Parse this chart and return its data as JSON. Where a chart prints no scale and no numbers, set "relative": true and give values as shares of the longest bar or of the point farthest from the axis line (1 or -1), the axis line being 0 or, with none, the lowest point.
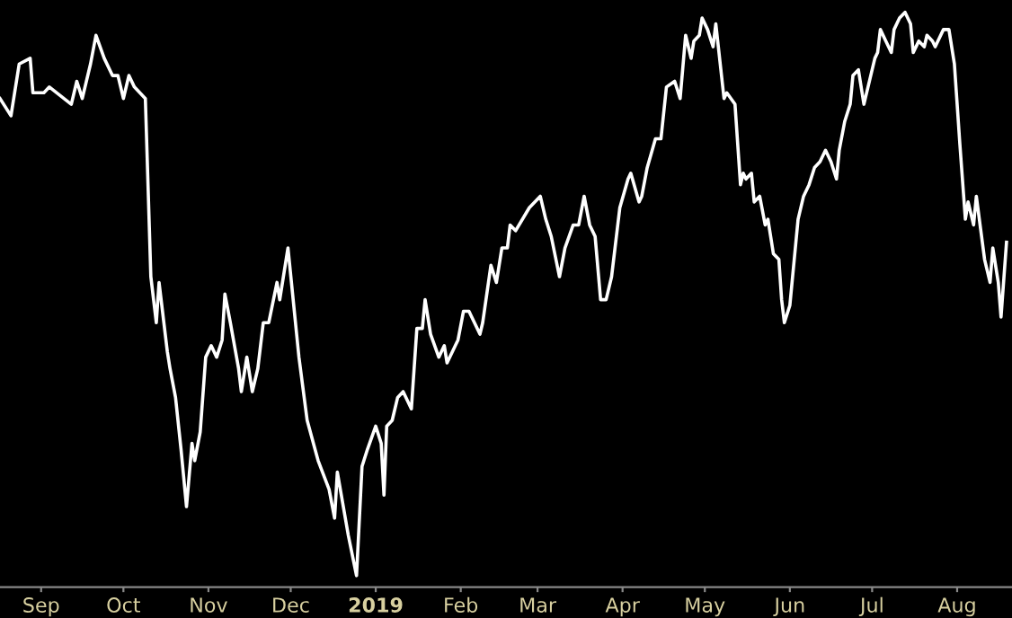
{
  "chart_data": {
    "type": "line",
    "relative": true,
    "grid": false,
    "legend": false,
    "marker": "none",
    "line_style": "solid",
    "xlim": [
      "2018-08-17",
      "2019-08-21"
    ],
    "xticks": [
      {
        "value": "2018-09-01",
        "label": "Sep"
      },
      {
        "value": "2018-10-01",
        "label": "Oct"
      },
      {
        "value": "2018-11-01",
        "label": "Nov"
      },
      {
        "value": "2018-12-01",
        "label": "Dec"
      },
      {
        "value": "2019-01-01",
        "label": "2019"
      },
      {
        "value": "2019-02-01",
        "label": "Feb"
      },
      {
        "value": "2019-03-01",
        "label": "Mar"
      },
      {
        "value": "2019-04-01",
        "label": "Apr"
      },
      {
        "value": "2019-05-01",
        "label": "May"
      },
      {
        "value": "2019-06-01",
        "label": "Jun"
      },
      {
        "value": "2019-07-01",
        "label": "Jul"
      },
      {
        "value": "2019-08-01",
        "label": "Aug"
      }
    ],
    "series": [
      {
        "color": "#ffffff",
        "x": [
          "2018-08-17",
          "2018-08-21",
          "2018-08-24",
          "2018-08-28",
          "2018-08-29",
          "2018-09-02",
          "2018-09-04",
          "2018-09-12",
          "2018-09-14",
          "2018-09-16",
          "2018-09-19",
          "2018-09-21",
          "2018-09-24",
          "2018-09-27",
          "2018-09-29",
          "2018-10-01",
          "2018-10-03",
          "2018-10-05",
          "2018-10-09",
          "2018-10-11",
          "2018-10-13",
          "2018-10-14",
          "2018-10-17",
          "2018-10-18",
          "2018-10-20",
          "2018-10-22",
          "2018-10-24",
          "2018-10-26",
          "2018-10-27",
          "2018-10-29",
          "2018-10-31",
          "2018-11-02",
          "2018-11-04",
          "2018-11-06",
          "2018-11-07",
          "2018-11-09",
          "2018-11-12",
          "2018-11-13",
          "2018-11-15",
          "2018-11-17",
          "2018-11-19",
          "2018-11-21",
          "2018-11-23",
          "2018-11-26",
          "2018-11-27",
          "2018-11-30",
          "2018-12-04",
          "2018-12-07",
          "2018-12-11",
          "2018-12-15",
          "2018-12-17",
          "2018-12-18",
          "2018-12-22",
          "2018-12-25",
          "2018-12-27",
          "2018-12-29",
          "2019-01-01",
          "2019-01-03",
          "2019-01-04",
          "2019-01-05",
          "2019-01-07",
          "2019-01-09",
          "2019-01-11",
          "2019-01-14",
          "2019-01-16",
          "2019-01-18",
          "2019-01-19",
          "2019-01-21",
          "2019-01-24",
          "2019-01-26",
          "2019-01-27",
          "2019-01-29",
          "2019-01-31",
          "2019-02-02",
          "2019-02-04",
          "2019-02-08",
          "2019-02-09",
          "2019-02-12",
          "2019-02-14",
          "2019-02-16",
          "2019-02-18",
          "2019-02-19",
          "2019-02-21",
          "2019-02-26",
          "2019-03-02",
          "2019-03-04",
          "2019-03-06",
          "2019-03-09",
          "2019-03-11",
          "2019-03-14",
          "2019-03-16",
          "2019-03-18",
          "2019-03-20",
          "2019-03-22",
          "2019-03-24",
          "2019-03-26",
          "2019-03-28",
          "2019-03-29",
          "2019-03-31",
          "2019-04-03",
          "2019-04-04",
          "2019-04-07",
          "2019-04-08",
          "2019-04-10",
          "2019-04-13",
          "2019-04-15",
          "2019-04-17",
          "2019-04-20",
          "2019-04-22",
          "2019-04-24",
          "2019-04-26",
          "2019-04-27",
          "2019-04-29",
          "2019-04-30",
          "2019-05-02",
          "2019-05-04",
          "2019-05-05",
          "2019-05-08",
          "2019-05-09",
          "2019-05-12",
          "2019-05-14",
          "2019-05-15",
          "2019-05-16",
          "2019-05-18",
          "2019-05-19",
          "2019-05-21",
          "2019-05-23",
          "2019-05-24",
          "2019-05-26",
          "2019-05-28",
          "2019-05-29",
          "2019-05-30",
          "2019-06-01",
          "2019-06-04",
          "2019-06-06",
          "2019-06-08",
          "2019-06-10",
          "2019-06-12",
          "2019-06-14",
          "2019-06-16",
          "2019-06-18",
          "2019-06-19",
          "2019-06-21",
          "2019-06-23",
          "2019-06-24",
          "2019-06-26",
          "2019-06-28",
          "2019-07-02",
          "2019-07-03",
          "2019-07-04",
          "2019-07-06",
          "2019-07-08",
          "2019-07-09",
          "2019-07-11",
          "2019-07-13",
          "2019-07-15",
          "2019-07-16",
          "2019-07-18",
          "2019-07-20",
          "2019-07-21",
          "2019-07-23",
          "2019-07-24",
          "2019-07-27",
          "2019-07-29",
          "2019-07-31",
          "2019-08-02",
          "2019-08-04",
          "2019-08-05",
          "2019-08-07",
          "2019-08-08",
          "2019-08-11",
          "2019-08-13",
          "2019-08-14",
          "2019-08-16",
          "2019-08-17",
          "2019-08-19"
        ],
        "values": [
          0.85,
          0.82,
          0.91,
          0.92,
          0.86,
          0.86,
          0.87,
          0.84,
          0.88,
          0.85,
          0.91,
          0.96,
          0.92,
          0.89,
          0.89,
          0.85,
          0.89,
          0.87,
          0.85,
          0.54,
          0.46,
          0.53,
          0.41,
          0.38,
          0.33,
          0.24,
          0.14,
          0.25,
          0.22,
          0.27,
          0.4,
          0.42,
          0.4,
          0.43,
          0.51,
          0.46,
          0.38,
          0.34,
          0.4,
          0.34,
          0.38,
          0.46,
          0.46,
          0.53,
          0.5,
          0.59,
          0.4,
          0.29,
          0.22,
          0.17,
          0.12,
          0.2,
          0.09,
          0.02,
          0.21,
          0.24,
          0.28,
          0.25,
          0.16,
          0.28,
          0.29,
          0.33,
          0.34,
          0.31,
          0.45,
          0.45,
          0.5,
          0.44,
          0.4,
          0.42,
          0.39,
          0.41,
          0.43,
          0.48,
          0.48,
          0.44,
          0.46,
          0.56,
          0.53,
          0.59,
          0.59,
          0.63,
          0.62,
          0.66,
          0.68,
          0.64,
          0.61,
          0.54,
          0.59,
          0.63,
          0.63,
          0.68,
          0.63,
          0.61,
          0.5,
          0.5,
          0.54,
          0.58,
          0.66,
          0.71,
          0.72,
          0.67,
          0.68,
          0.73,
          0.78,
          0.78,
          0.87,
          0.88,
          0.85,
          0.96,
          0.92,
          0.95,
          0.96,
          0.99,
          0.97,
          0.94,
          0.98,
          0.85,
          0.86,
          0.84,
          0.7,
          0.72,
          0.71,
          0.72,
          0.67,
          0.68,
          0.63,
          0.64,
          0.58,
          0.57,
          0.5,
          0.46,
          0.49,
          0.64,
          0.68,
          0.7,
          0.73,
          0.74,
          0.76,
          0.74,
          0.71,
          0.76,
          0.81,
          0.84,
          0.89,
          0.9,
          0.84,
          0.92,
          0.93,
          0.97,
          0.95,
          0.93,
          0.97,
          0.99,
          1.0,
          0.98,
          0.93,
          0.95,
          0.94,
          0.96,
          0.95,
          0.94,
          0.97,
          0.97,
          0.91,
          0.77,
          0.64,
          0.67,
          0.63,
          0.68,
          0.57,
          0.53,
          0.59,
          0.53,
          0.47,
          0.6
        ]
      }
    ]
  }
}
